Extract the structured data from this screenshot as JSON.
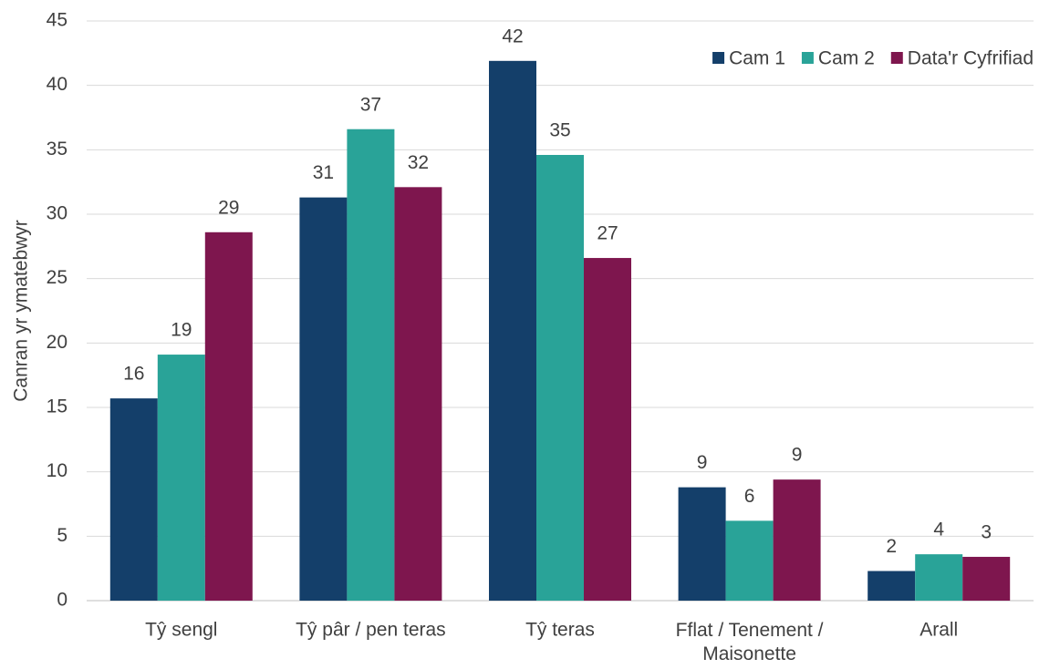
{
  "chart_data": {
    "type": "bar",
    "y_label": "Canran yr ymatebwyr",
    "categories": [
      "Tŷ sengl",
      "Tŷ pâr / pen teras",
      "Tŷ teras",
      "Fflat / Tenement / Maisonette",
      "Arall"
    ],
    "series": [
      {
        "name": "Cam 1",
        "color": "#143f6a",
        "values": [
          15.7,
          31.3,
          41.9,
          8.8,
          2.3
        ],
        "value_labels": [
          "16",
          "31",
          "42",
          "9",
          "2"
        ]
      },
      {
        "name": "Cam 2",
        "color": "#29a398",
        "values": [
          19.1,
          36.6,
          34.6,
          6.2,
          3.6
        ],
        "value_labels": [
          "19",
          "37",
          "35",
          "6",
          "4"
        ]
      },
      {
        "name": "Data'r Cyfrifiad",
        "color": "#7e164e",
        "values": [
          28.6,
          32.1,
          26.6,
          9.4,
          3.4
        ],
        "value_labels": [
          "29",
          "32",
          "27",
          "9",
          "3"
        ]
      }
    ],
    "ylim": [
      0,
      45
    ],
    "yticks": [
      0,
      5,
      10,
      15,
      20,
      25,
      30,
      35,
      40,
      45
    ],
    "grid": true,
    "legend": "top-right"
  }
}
